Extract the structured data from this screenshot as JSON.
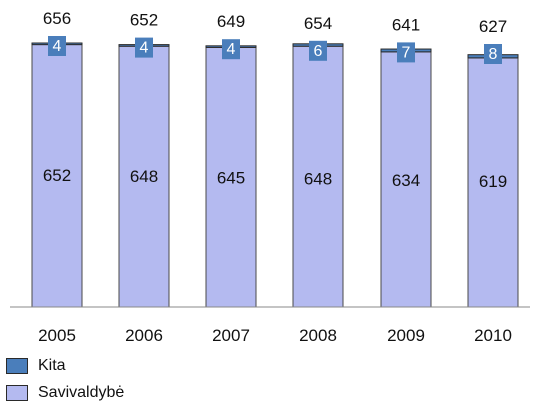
{
  "chart_data": {
    "type": "bar",
    "stacked": true,
    "categories": [
      "2005",
      "2006",
      "2007",
      "2008",
      "2009",
      "2010"
    ],
    "series": [
      {
        "name": "Savivaldybė",
        "values": [
          652,
          648,
          645,
          648,
          634,
          619
        ],
        "color": "#b4baf0"
      },
      {
        "name": "Kita",
        "values": [
          4,
          4,
          4,
          6,
          7,
          8
        ],
        "color": "#4a7ebb"
      }
    ],
    "totals": [
      656,
      652,
      649,
      654,
      641,
      627
    ],
    "title": "",
    "xlabel": "",
    "ylabel": "",
    "ylim": [
      0,
      656
    ],
    "grid": false,
    "legend_position": "bottom-left",
    "y_axis_visible": false
  }
}
